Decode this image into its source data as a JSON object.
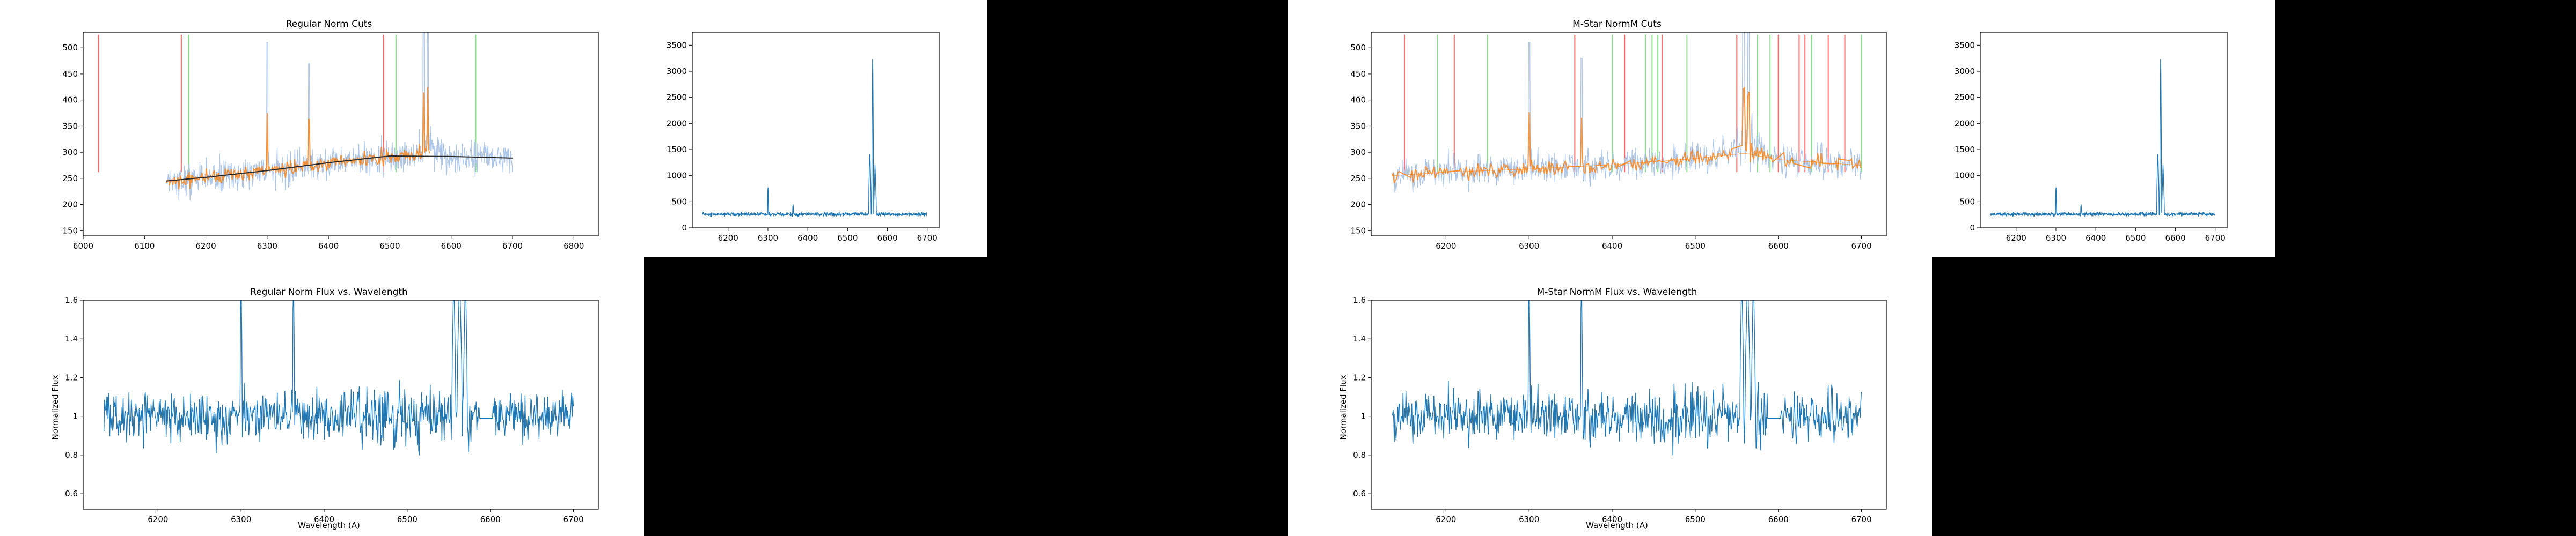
{
  "colors": {
    "spectrum": "#1f77b4",
    "spectrum_light": "#aec7e8",
    "fit_points": "#ff7f0e",
    "fit_curve": "#000000",
    "cut_red": "#ff6666",
    "cut_green": "#88dd88",
    "cut_blue_faint": "#9fbfe0"
  },
  "chart_data": [
    {
      "type": "line",
      "id": "reg_cuts",
      "title": "Regular Norm Cuts",
      "xlabel": "",
      "ylabel": "",
      "xlim": [
        6000,
        6840
      ],
      "ylim": [
        140,
        530
      ],
      "xticks": [
        6000,
        6100,
        6200,
        6300,
        6400,
        6500,
        6600,
        6700,
        6800
      ],
      "yticks": [
        150,
        200,
        250,
        300,
        350,
        400,
        450,
        500
      ],
      "spectrum_range": [
        6135,
        6700
      ],
      "continuum": {
        "x": [
          6135,
          6200,
          6300,
          6400,
          6500,
          6600,
          6700
        ],
        "y": [
          245,
          252,
          265,
          280,
          293,
          292,
          289
        ]
      },
      "fit_range": [
        6135,
        6565
      ],
      "red_cuts": [
        6025,
        6160,
        6490
      ],
      "green_cuts": [
        6172,
        6510,
        6640
      ],
      "spikes": [
        {
          "x": 6300,
          "y": 510
        },
        {
          "x": 6368,
          "y": 470
        },
        {
          "x": 6555,
          "y": 535
        },
        {
          "x": 6562,
          "y": 540
        }
      ]
    },
    {
      "type": "line",
      "id": "reg_raw",
      "title": "",
      "xlabel": "",
      "ylabel": "",
      "xlim": [
        6110,
        6730
      ],
      "ylim": [
        0,
        3750
      ],
      "xticks": [
        6200,
        6300,
        6400,
        6500,
        6600,
        6700
      ],
      "yticks": [
        0,
        500,
        1000,
        1500,
        2000,
        2500,
        3000,
        3500
      ],
      "spectrum_range": [
        6135,
        6700
      ],
      "base": 260,
      "noise": 25,
      "spikes": [
        {
          "x": 6300,
          "y": 830,
          "w": 1
        },
        {
          "x": 6363,
          "y": 470,
          "w": 1
        },
        {
          "x": 6556,
          "y": 1500,
          "w": 3
        },
        {
          "x": 6563,
          "y": 3560,
          "w": 2
        },
        {
          "x": 6569,
          "y": 1200,
          "w": 3
        }
      ]
    },
    {
      "type": "line",
      "id": "reg_norm",
      "title": "Regular Norm Flux vs. Wavelength",
      "xlabel": "Wavelength (A)",
      "ylabel": "Normalized Flux",
      "xlim": [
        6110,
        6730
      ],
      "ylim": [
        0.52,
        1.6
      ],
      "xticks": [
        6200,
        6300,
        6400,
        6500,
        6600,
        6700
      ],
      "yticks": [
        0.6,
        0.8,
        1.0,
        1.2,
        1.4,
        1.6
      ],
      "spectrum_range": [
        6135,
        6700
      ],
      "base": 1.0,
      "noise": 0.09,
      "spikes": [
        {
          "x": 6300,
          "y": 1.75,
          "w": 1
        },
        {
          "x": 6363,
          "y": 1.75,
          "w": 1
        },
        {
          "x": 6556,
          "y": 1.75,
          "w": 2
        },
        {
          "x": 6563,
          "y": 1.75,
          "w": 3
        },
        {
          "x": 6570,
          "y": 1.75,
          "w": 2
        }
      ]
    },
    {
      "type": "line",
      "id": "m_cuts",
      "title": "M-Star NormM Cuts",
      "xlabel": "",
      "ylabel": "",
      "xlim": [
        6110,
        6730
      ],
      "ylim": [
        140,
        530
      ],
      "xticks": [
        6200,
        6300,
        6400,
        6500,
        6600,
        6700
      ],
      "yticks": [
        150,
        200,
        250,
        300,
        350,
        400,
        450,
        500
      ],
      "spectrum_range": [
        6135,
        6700
      ],
      "continuum": {
        "x": [
          6135,
          6200,
          6300,
          6400,
          6500,
          6560,
          6600,
          6700
        ],
        "y": [
          255,
          262,
          268,
          276,
          288,
          298,
          286,
          275
        ]
      },
      "red_cuts": [
        6150,
        6210,
        6355,
        6415,
        6460,
        6550,
        6600,
        6625,
        6632,
        6660,
        6680
      ],
      "green_cuts": [
        6190,
        6250,
        6400,
        6440,
        6448,
        6455,
        6490,
        6575,
        6590,
        6640,
        6700
      ],
      "spikes": [
        {
          "x": 6300,
          "y": 510
        },
        {
          "x": 6363,
          "y": 480
        },
        {
          "x": 6558,
          "y": 540
        },
        {
          "x": 6564,
          "y": 540
        }
      ]
    },
    {
      "type": "line",
      "id": "m_raw",
      "title": "",
      "xlabel": "",
      "ylabel": "",
      "xlim": [
        6110,
        6730
      ],
      "ylim": [
        0,
        3750
      ],
      "xticks": [
        6200,
        6300,
        6400,
        6500,
        6600,
        6700
      ],
      "yticks": [
        0,
        500,
        1000,
        1500,
        2000,
        2500,
        3000,
        3500
      ],
      "spectrum_range": [
        6135,
        6700
      ],
      "base": 260,
      "noise": 25,
      "spikes": [
        {
          "x": 6300,
          "y": 830,
          "w": 1
        },
        {
          "x": 6363,
          "y": 470,
          "w": 1
        },
        {
          "x": 6556,
          "y": 1500,
          "w": 3
        },
        {
          "x": 6563,
          "y": 3560,
          "w": 2
        },
        {
          "x": 6569,
          "y": 1200,
          "w": 3
        }
      ]
    },
    {
      "type": "line",
      "id": "m_norm",
      "title": "M-Star NormM Flux vs. Wavelength",
      "xlabel": "Wavelength (A)",
      "ylabel": "Normalized Flux",
      "xlim": [
        6110,
        6730
      ],
      "ylim": [
        0.52,
        1.6
      ],
      "xticks": [
        6200,
        6300,
        6400,
        6500,
        6600,
        6700
      ],
      "yticks": [
        0.6,
        0.8,
        1.0,
        1.2,
        1.4,
        1.6
      ],
      "spectrum_range": [
        6135,
        6700
      ],
      "base": 1.0,
      "noise": 0.09,
      "spikes": [
        {
          "x": 6300,
          "y": 1.75,
          "w": 1
        },
        {
          "x": 6363,
          "y": 1.75,
          "w": 1
        },
        {
          "x": 6556,
          "y": 1.75,
          "w": 2
        },
        {
          "x": 6563,
          "y": 1.75,
          "w": 3
        },
        {
          "x": 6570,
          "y": 1.75,
          "w": 2
        }
      ]
    }
  ]
}
